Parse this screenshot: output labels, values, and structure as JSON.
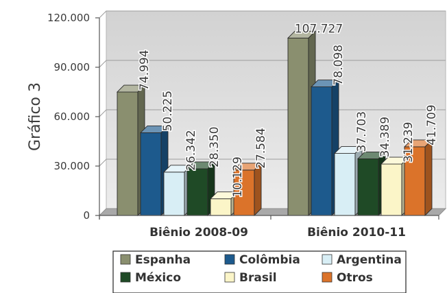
{
  "chart_data": {
    "type": "bar",
    "title": "",
    "side_title": "Gráfico 3",
    "xlabel": "",
    "ylabel": "",
    "categories": [
      "Biênio 2008-09",
      "Biênio 2010-11"
    ],
    "ylim": [
      0,
      120000
    ],
    "yticks": [
      0,
      30000,
      60000,
      90000,
      120000
    ],
    "ytick_labels": [
      "0",
      "30.000",
      "60.000",
      "90.000",
      "120.000"
    ],
    "grid": true,
    "three_d": true,
    "legend_position": "bottom",
    "series": [
      {
        "name": "Espanha",
        "color": "#8a8f6f",
        "values": [
          74994,
          107727
        ],
        "labels": [
          "74.994",
          "107.727"
        ]
      },
      {
        "name": "Colômbia",
        "color": "#1d5a8d",
        "values": [
          50225,
          78098
        ],
        "labels": [
          "50.225",
          "78.098"
        ]
      },
      {
        "name": "Argentina",
        "color": "#d8eef5",
        "values": [
          26342,
          37703
        ],
        "labels": [
          "26.342",
          "37.703"
        ]
      },
      {
        "name": "México",
        "color": "#1f4a26",
        "values": [
          28350,
          34389
        ],
        "labels": [
          "28.350",
          "34.389"
        ]
      },
      {
        "name": "Brasil",
        "color": "#fbf5c8",
        "values": [
          10129,
          31239
        ],
        "labels": [
          "10.129",
          "31.239"
        ]
      },
      {
        "name": "Otros",
        "color": "#db732a",
        "values": [
          27584,
          41709
        ],
        "labels": [
          "27.584",
          "41.709"
        ]
      }
    ]
  }
}
